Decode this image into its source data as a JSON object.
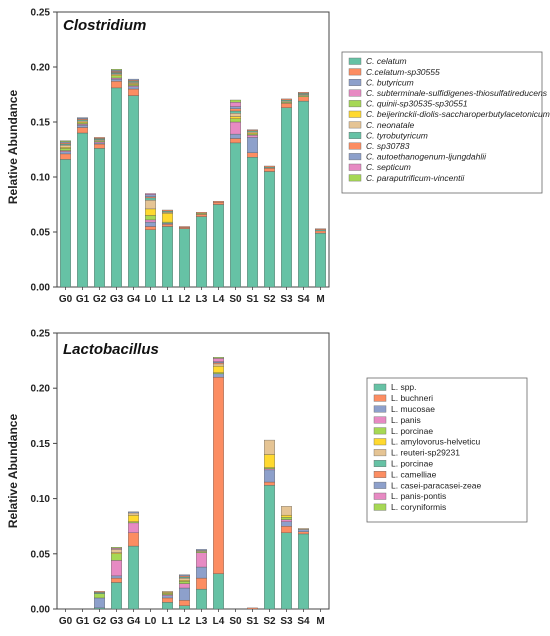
{
  "chart_data": [
    {
      "type": "bar",
      "stacked": true,
      "title": "Clostridium",
      "title_style": "italic",
      "xlabel": "",
      "ylabel": "Relative Abundance",
      "ylim": [
        0,
        0.25
      ],
      "yticks": [
        "0.00",
        "0.05",
        "0.10",
        "0.15",
        "0.20",
        "0.25"
      ],
      "categories": [
        "G0",
        "G1",
        "G2",
        "G3",
        "G4",
        "L0",
        "L1",
        "L2",
        "L3",
        "L4",
        "S0",
        "S1",
        "S2",
        "S3",
        "S4",
        "M"
      ],
      "legend_position": "right",
      "legend_italic": true,
      "series": [
        {
          "name": "C. celatum",
          "color": "#66c2a5",
          "values": [
            0.116,
            0.14,
            0.126,
            0.181,
            0.174,
            0.052,
            0.055,
            0.053,
            0.064,
            0.075,
            0.131,
            0.118,
            0.105,
            0.163,
            0.169,
            0.049
          ]
        },
        {
          "name": "C.celatum-sp30555",
          "color": "#fc8d62",
          "values": [
            0.005,
            0.005,
            0.004,
            0.006,
            0.006,
            0.003,
            0.002,
            0.001,
            0.002,
            0.002,
            0.004,
            0.004,
            0.003,
            0.004,
            0.004,
            0.002
          ]
        },
        {
          "name": "C. butyricum",
          "color": "#8da0cb",
          "values": [
            0.002,
            0.002,
            0.001,
            0.002,
            0.002,
            0.004,
            0.001,
            0.0,
            0.0,
            0.0,
            0.004,
            0.014,
            0.0,
            0.0,
            0.0,
            0.0
          ]
        },
        {
          "name": "C. subterminale-sulfidigenes-thiosulfatireducens",
          "color": "#e78ac3",
          "values": [
            0.001,
            0.001,
            0.001,
            0.001,
            0.001,
            0.002,
            0.0,
            0.0,
            0.0,
            0.0,
            0.011,
            0.002,
            0.0,
            0.0,
            0.0,
            0.0
          ]
        },
        {
          "name": "C. quinii-sp30535-sp30551",
          "color": "#a6d854",
          "values": [
            0.002,
            0.001,
            0.001,
            0.002,
            0.001,
            0.004,
            0.001,
            0.0,
            0.001,
            0.0,
            0.003,
            0.001,
            0.0,
            0.001,
            0.001,
            0.0
          ]
        },
        {
          "name": "C. beijerinckii-diolis-saccharoperbutylacetonicum",
          "color": "#ffd92f",
          "values": [
            0.001,
            0.001,
            0.0,
            0.001,
            0.001,
            0.006,
            0.008,
            0.0,
            0.0,
            0.0,
            0.002,
            0.001,
            0.0,
            0.0,
            0.0,
            0.0
          ]
        },
        {
          "name": "C. neonatale",
          "color": "#e5c494",
          "values": [
            0.002,
            0.001,
            0.001,
            0.001,
            0.001,
            0.008,
            0.001,
            0.0,
            0.0,
            0.0,
            0.003,
            0.001,
            0.0,
            0.001,
            0.001,
            0.0
          ]
        },
        {
          "name": "C. tyrobutyricum",
          "color": "#66c2a5",
          "values": [
            0.001,
            0.001,
            0.001,
            0.001,
            0.001,
            0.002,
            0.001,
            0.0,
            0.0,
            0.0,
            0.002,
            0.001,
            0.001,
            0.001,
            0.001,
            0.001
          ]
        },
        {
          "name": "C. sp30783",
          "color": "#fc8d62",
          "values": [
            0.001,
            0.001,
            0.001,
            0.001,
            0.001,
            0.001,
            0.001,
            0.001,
            0.001,
            0.001,
            0.002,
            0.001,
            0.001,
            0.001,
            0.001,
            0.001
          ]
        },
        {
          "name": "C. autoethanogenum-ljungdahlii",
          "color": "#8da0cb",
          "values": [
            0.001,
            0.001,
            0.0,
            0.001,
            0.001,
            0.002,
            0.0,
            0.0,
            0.0,
            0.0,
            0.002,
            0.0,
            0.0,
            0.0,
            0.0,
            0.0
          ]
        },
        {
          "name": "C. septicum",
          "color": "#e78ac3",
          "values": [
            0.0,
            0.0,
            0.0,
            0.0,
            0.0,
            0.001,
            0.0,
            0.0,
            0.0,
            0.0,
            0.004,
            0.0,
            0.0,
            0.0,
            0.0,
            0.0
          ]
        },
        {
          "name": "C. paraputrificum-vincentii",
          "color": "#a6d854",
          "values": [
            0.001,
            0.0,
            0.0,
            0.001,
            0.0,
            0.0,
            0.0,
            0.0,
            0.0,
            0.0,
            0.002,
            0.0,
            0.0,
            0.0,
            0.0,
            0.0
          ]
        }
      ]
    },
    {
      "type": "bar",
      "stacked": true,
      "title": "Lactobacillus",
      "title_style": "italic",
      "xlabel": "",
      "ylabel": "Relative Abundance",
      "ylim": [
        0,
        0.25
      ],
      "yticks": [
        "0.00",
        "0.05",
        "0.10",
        "0.15",
        "0.20",
        "0.25"
      ],
      "categories": [
        "G0",
        "G1",
        "G2",
        "G3",
        "G4",
        "L0",
        "L1",
        "L2",
        "L3",
        "L4",
        "S0",
        "S1",
        "S2",
        "S3",
        "S4",
        "M"
      ],
      "legend_position": "right",
      "legend_italic": false,
      "series": [
        {
          "name": "L. spp.",
          "color": "#66c2a5",
          "values": [
            0,
            0,
            0.001,
            0.024,
            0.057,
            0,
            0.006,
            0.003,
            0.018,
            0.032,
            0,
            0.0,
            0.112,
            0.069,
            0.068,
            0
          ]
        },
        {
          "name": "L. buchneri",
          "color": "#fc8d62",
          "values": [
            0,
            0,
            0.0,
            0.004,
            0.012,
            0,
            0.004,
            0.005,
            0.01,
            0.178,
            0,
            0.001,
            0.003,
            0.006,
            0.002,
            0
          ]
        },
        {
          "name": "L. mucosae",
          "color": "#8da0cb",
          "values": [
            0,
            0,
            0.009,
            0.002,
            0.0,
            0,
            0.002,
            0.011,
            0.01,
            0.003,
            0,
            0.0,
            0.011,
            0.004,
            0.002,
            0
          ]
        },
        {
          "name": "L. panis",
          "color": "#e78ac3",
          "values": [
            0,
            0,
            0.0,
            0.014,
            0.009,
            0,
            0.001,
            0.004,
            0.013,
            0.0,
            0,
            0.0,
            0.001,
            0.002,
            0.0,
            0
          ]
        },
        {
          "name": "L. porcinae",
          "color": "#a6d854",
          "values": [
            0,
            0,
            0.004,
            0.006,
            0.001,
            0,
            0.001,
            0.002,
            0.001,
            0.001,
            0,
            0.0,
            0.001,
            0.002,
            0.0,
            0
          ]
        },
        {
          "name": "L. amylovorus-helveticu",
          "color": "#ffd92f",
          "values": [
            0,
            0,
            0.0,
            0.001,
            0.006,
            0,
            0.001,
            0.001,
            0.0,
            0.006,
            0,
            0.0,
            0.012,
            0.002,
            0.0,
            0
          ]
        },
        {
          "name": "L. reuteri-sp29231",
          "color": "#e5c494",
          "values": [
            0,
            0,
            0.0,
            0.003,
            0.002,
            0,
            0.001,
            0.002,
            0.001,
            0.002,
            0,
            0.0,
            0.013,
            0.008,
            0.001,
            0
          ]
        },
        {
          "name": "L. porcinae",
          "color": "#66c2a5",
          "values": [
            0,
            0,
            0.001,
            0.0,
            0.0,
            0,
            0.0,
            0.001,
            0.0,
            0.0,
            0,
            0.0,
            0.0,
            0.0,
            0.0,
            0
          ]
        },
        {
          "name": "L. camelliae",
          "color": "#fc8d62",
          "values": [
            0,
            0,
            0.001,
            0.0,
            0.0,
            0,
            0.0,
            0.001,
            0.0,
            0.001,
            0,
            0.0,
            0.0,
            0.0,
            0.0,
            0
          ]
        },
        {
          "name": "L. casei-paracasei-zeae",
          "color": "#8da0cb",
          "values": [
            0,
            0,
            0.0,
            0.0,
            0.001,
            0,
            0.0,
            0.001,
            0.001,
            0.001,
            0,
            0.0,
            0.0,
            0.0,
            0.0,
            0
          ]
        },
        {
          "name": "L. panis-pontis",
          "color": "#e78ac3",
          "values": [
            0,
            0,
            0.0,
            0.001,
            0.0,
            0,
            0.0,
            0.0,
            0.0,
            0.003,
            0,
            0.0,
            0.0,
            0.0,
            0.0,
            0
          ]
        },
        {
          "name": "L. coryniformis",
          "color": "#a6d854",
          "values": [
            0,
            0,
            0.0,
            0.001,
            0.0,
            0,
            0.0,
            0.0,
            0.0,
            0.001,
            0,
            0.0,
            0.0,
            0.0,
            0.0,
            0
          ]
        }
      ]
    }
  ]
}
